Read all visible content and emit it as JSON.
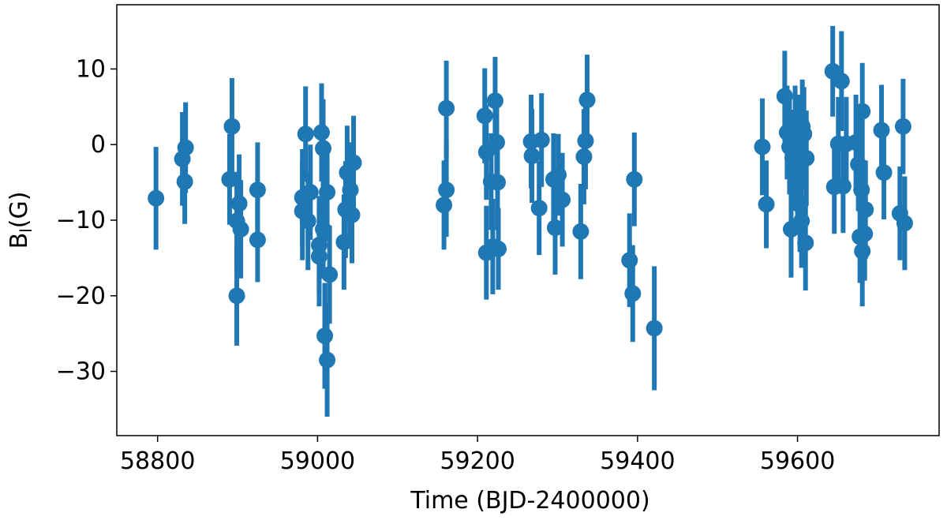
{
  "chart_data": {
    "type": "errorbar",
    "xlabel": "Time (BJD-2400000)",
    "ylabel": [
      "B",
      "l",
      "(G)"
    ],
    "xlim": [
      58749,
      59777
    ],
    "ylim": [
      -38.5,
      18.5
    ],
    "xticks": [
      58800,
      59000,
      59200,
      59400,
      59600
    ],
    "yticks": [
      {
        "value": -30,
        "label": "−30"
      },
      {
        "value": -20,
        "label": "−20"
      },
      {
        "value": -10,
        "label": "−10"
      },
      0,
      10
    ],
    "color": "#1f77b4",
    "x": [
      58798,
      58831,
      58835,
      58834,
      58890,
      58893,
      58899,
      58902,
      58899,
      58904,
      58925,
      58925,
      58981,
      58981,
      58985,
      58988,
      58991,
      59002,
      59005,
      59007,
      59007,
      59002,
      59009,
      59012,
      59012,
      59015,
      59033,
      59035,
      59037,
      59041,
      59043,
      59045,
      59158,
      59161,
      59161,
      59209,
      59211,
      59211,
      59217,
      59219,
      59222,
      59224,
      59225,
      59226,
      59267,
      59268,
      59277,
      59280,
      59295,
      59297,
      59301,
      59306,
      59329,
      59333,
      59335,
      59337,
      59390,
      59394,
      59396,
      59421,
      59556,
      59561,
      59584,
      59587,
      59590,
      59592,
      59594,
      59597,
      59598,
      59600,
      59602,
      59603,
      59605,
      59606,
      59608,
      59610,
      59611,
      59644,
      59646,
      59651,
      59655,
      59657,
      59661,
      59673,
      59676,
      59678,
      59680,
      59681,
      59681,
      59684,
      59685,
      59705,
      59708,
      59728,
      59732,
      59734
    ],
    "values": [
      -7.1,
      -1.9,
      -0.4,
      -4.9,
      -4.6,
      2.4,
      -20,
      -7.8,
      -10.1,
      -11.2,
      -6,
      -12.6,
      -7,
      -8.8,
      1.4,
      -10.1,
      -6.3,
      -14.8,
      1.6,
      -0.5,
      -11.2,
      -13.3,
      -25.3,
      -28.5,
      -6.3,
      -17.2,
      -12.9,
      -8.6,
      -3.7,
      -6,
      -9.3,
      -2.4,
      -8,
      -6,
      4.8,
      3.8,
      -1,
      -14.3,
      -4.9,
      -13.5,
      5.8,
      0.3,
      -5,
      -13.8,
      0.4,
      -1.5,
      -8.4,
      0.6,
      -4.6,
      -11,
      -4,
      -7.3,
      -11.5,
      -1.6,
      0.5,
      5.9,
      -15.3,
      -19.7,
      -4.6,
      -24.3,
      -0.3,
      -7.9,
      6.4,
      1.6,
      -0.3,
      -11.2,
      -1.8,
      1.4,
      -1.8,
      -5.2,
      0.3,
      -8,
      -10.1,
      2.4,
      1.4,
      -13,
      -1.8,
      9.7,
      -5.6,
      0.1,
      8.4,
      -5.5,
      0.1,
      0.3,
      -2.6,
      -12.2,
      -6,
      4.4,
      -14.1,
      -11.8,
      -8.6,
      1.9,
      -3.7,
      -9.1,
      2.4,
      -10.4
    ],
    "errors": [
      6.8,
      6.2,
      6,
      5.6,
      6,
      6.4,
      6.6,
      6.5,
      6.5,
      6.5,
      6.3,
      5.6,
      6.4,
      6.5,
      6.3,
      6.5,
      6.3,
      6.6,
      6.5,
      6.5,
      6.5,
      6.5,
      7,
      7.5,
      6.5,
      6.5,
      6.3,
      6.4,
      6.2,
      6.3,
      6.4,
      6.2,
      5.9,
      6.2,
      6.3,
      6.3,
      6.3,
      6.2,
      6.4,
      6.3,
      5.8,
      6.3,
      6.3,
      5.4,
      6.2,
      6.2,
      6.2,
      6.2,
      6.1,
      6.2,
      5.4,
      6.2,
      6.3,
      6.3,
      6.4,
      6,
      6.2,
      6.4,
      6.2,
      8.2,
      6.4,
      5.8,
      6,
      6.2,
      6.3,
      6.4,
      6.4,
      6.4,
      6.3,
      6.4,
      6.3,
      6.2,
      6.2,
      6.2,
      6.2,
      6.3,
      6.3,
      6,
      6.2,
      6.2,
      6.6,
      6.2,
      6.2,
      6.3,
      6.2,
      6.1,
      6.3,
      6.4,
      7.3,
      6.2,
      6.5,
      6,
      6.2,
      6.2,
      6.3,
      6.2
    ]
  }
}
